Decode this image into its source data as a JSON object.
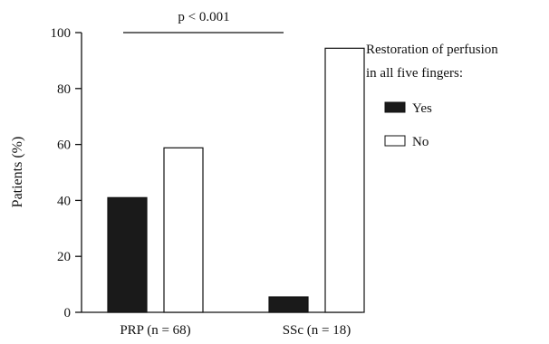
{
  "chart_data": {
    "type": "bar",
    "ylabel": "Patients (%)",
    "ylim": [
      0,
      100
    ],
    "yticks": [
      0,
      20,
      40,
      60,
      80,
      100
    ],
    "categories": [
      "PRP (n = 68)",
      "SSc (n = 18)"
    ],
    "series": [
      {
        "name": "Yes",
        "values": [
          41,
          5.5
        ],
        "color": "#1a1a1a"
      },
      {
        "name": "No",
        "values": [
          58.8,
          94.4
        ],
        "color": "#ffffff"
      }
    ],
    "legend": {
      "title_lines": [
        "Restoration of perfusion",
        "in all five fingers:"
      ],
      "placement": "right"
    },
    "annotation": "p < 0.001"
  }
}
